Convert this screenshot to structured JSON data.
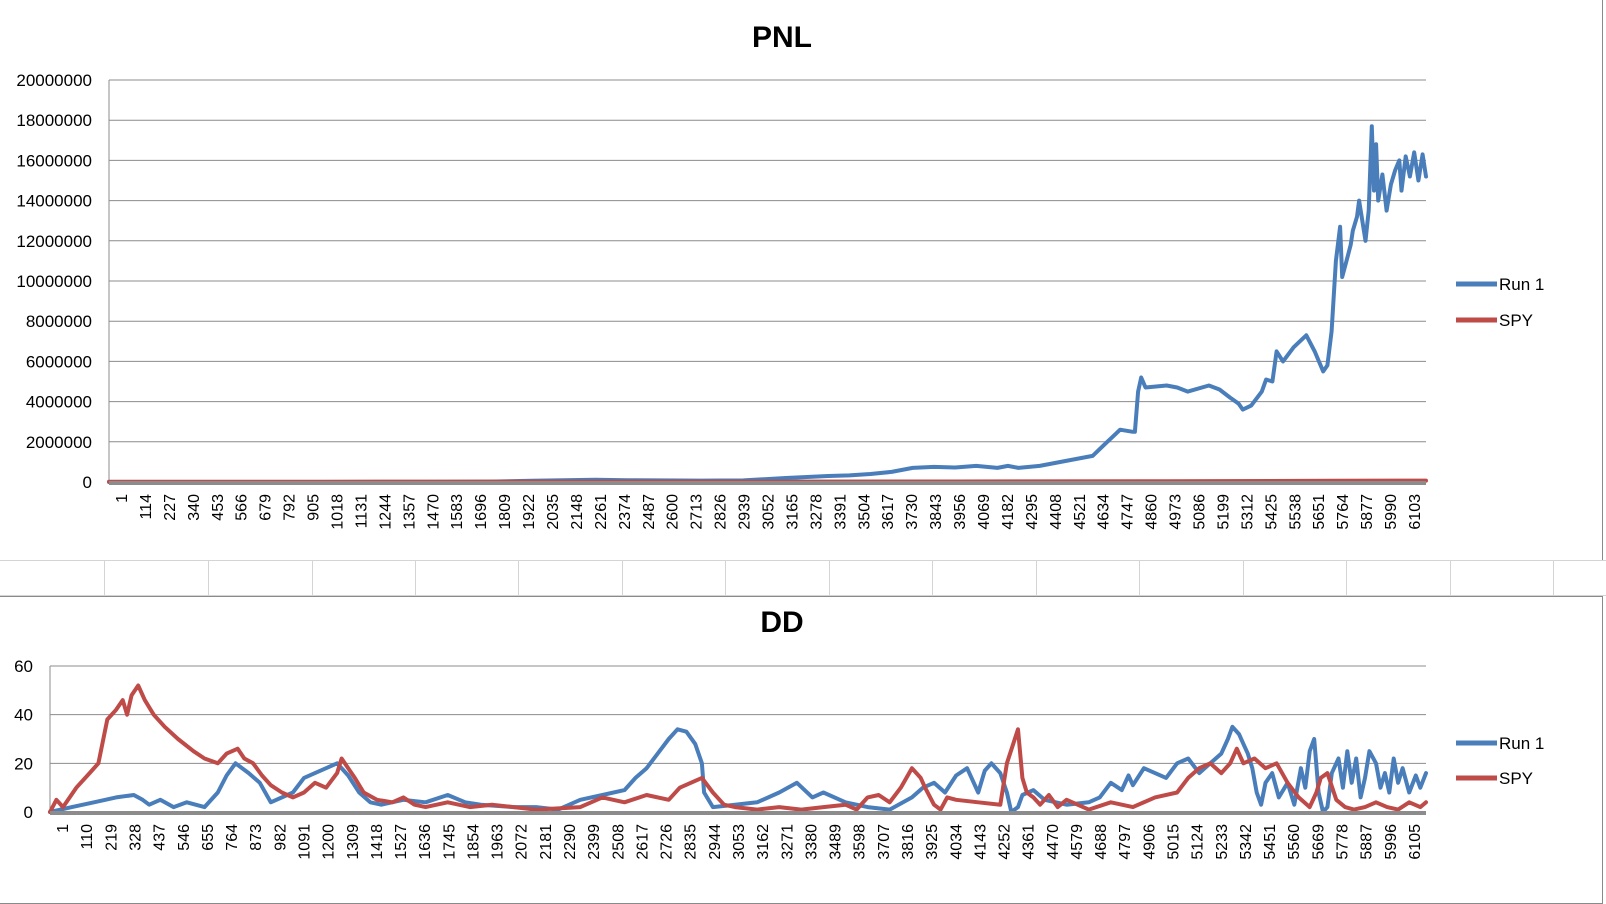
{
  "charts": {
    "pnl": {
      "title": "PNL",
      "ymin": 0,
      "ymax": 20000000,
      "ystep": 2000000,
      "xmax": 6226,
      "ytick_labels": [
        "0",
        "2000000",
        "4000000",
        "6000000",
        "8000000",
        "10000000",
        "12000000",
        "14000000",
        "16000000",
        "18000000",
        "20000000"
      ],
      "xtick_labels": [
        "1",
        "114",
        "227",
        "340",
        "453",
        "566",
        "679",
        "792",
        "905",
        "1018",
        "1131",
        "1244",
        "1357",
        "1470",
        "1583",
        "1696",
        "1809",
        "1922",
        "2035",
        "2148",
        "2261",
        "2374",
        "2487",
        "2600",
        "2713",
        "2826",
        "2939",
        "3052",
        "3165",
        "3278",
        "3391",
        "3504",
        "3617",
        "3730",
        "3843",
        "3956",
        "4069",
        "4182",
        "4295",
        "4408",
        "4521",
        "4634",
        "4747",
        "4860",
        "4973",
        "5086",
        "5199",
        "5312",
        "5425",
        "5538",
        "5651",
        "5764",
        "5877",
        "5990",
        "6103"
      ],
      "legend": [
        {
          "name": "Run 1",
          "color": "#4a7ebb"
        },
        {
          "name": "SPY",
          "color": "#be4b48"
        }
      ]
    },
    "dd": {
      "title": "DD",
      "ymin": 0,
      "ymax": 60,
      "ystep": 20,
      "xmax": 6226,
      "ytick_labels": [
        "0",
        "20",
        "40",
        "60"
      ],
      "xtick_labels": [
        "1",
        "110",
        "219",
        "328",
        "437",
        "546",
        "655",
        "764",
        "873",
        "982",
        "1091",
        "1200",
        "1309",
        "1418",
        "1527",
        "1636",
        "1745",
        "1854",
        "1963",
        "2072",
        "2181",
        "2290",
        "2399",
        "2508",
        "2617",
        "2726",
        "2835",
        "2944",
        "3053",
        "3162",
        "3271",
        "3380",
        "3489",
        "3598",
        "3707",
        "3816",
        "3925",
        "4034",
        "4143",
        "4252",
        "4361",
        "4470",
        "4579",
        "4688",
        "4797",
        "4906",
        "5015",
        "5124",
        "5233",
        "5342",
        "5451",
        "5560",
        "5669",
        "5778",
        "5887",
        "5996",
        "6105"
      ],
      "legend": [
        {
          "name": "Run 1",
          "color": "#4a7ebb"
        },
        {
          "name": "SPY",
          "color": "#be4b48"
        }
      ]
    }
  },
  "chart_data": [
    {
      "type": "line",
      "title": "PNL",
      "xlabel": "",
      "ylabel": "",
      "xlim": [
        1,
        6226
      ],
      "ylim": [
        0,
        20000000
      ],
      "grid": true,
      "legend_position": "right",
      "series": [
        {
          "name": "Run 1",
          "color": "#4a7ebb",
          "x": [
            1,
            500,
            1000,
            1500,
            1800,
            2000,
            2150,
            2300,
            2450,
            2600,
            2800,
            3000,
            3200,
            3400,
            3500,
            3600,
            3700,
            3800,
            3900,
            4000,
            4100,
            4200,
            4250,
            4300,
            4400,
            4500,
            4600,
            4650,
            4700,
            4760,
            4780,
            4840,
            4850,
            4865,
            4880,
            4900,
            5000,
            5050,
            5100,
            5200,
            5250,
            5300,
            5340,
            5360,
            5400,
            5450,
            5470,
            5500,
            5520,
            5550,
            5600,
            5630,
            5660,
            5700,
            5720,
            5740,
            5760,
            5780,
            5800,
            5820,
            5830,
            5850,
            5860,
            5870,
            5880,
            5900,
            5910,
            5940,
            5955,
            5970,
            5980,
            5990,
            6000,
            6020,
            6040,
            6060,
            6080,
            6100,
            6110,
            6130,
            6150,
            6170,
            6190,
            6210,
            6226
          ],
          "y": [
            0,
            0,
            0,
            0,
            20000,
            60000,
            90000,
            110000,
            90000,
            80000,
            70000,
            80000,
            200000,
            300000,
            330000,
            400000,
            500000,
            700000,
            750000,
            720000,
            800000,
            700000,
            800000,
            700000,
            800000,
            1000000,
            1200000,
            1300000,
            1800000,
            2400000,
            2600000,
            2500000,
            2500000,
            4500000,
            5200000,
            4700000,
            4800000,
            4700000,
            4500000,
            4800000,
            4600000,
            4200000,
            3900000,
            3600000,
            3800000,
            4500000,
            5100000,
            5000000,
            6500000,
            6000000,
            6700000,
            7000000,
            7300000,
            6500000,
            6000000,
            5500000,
            5800000,
            7500000,
            11000000,
            12700000,
            10200000,
            11000000,
            11400000,
            11800000,
            12500000,
            13200000,
            14000000,
            12000000,
            13500000,
            17700000,
            14500000,
            16800000,
            14000000,
            15300000,
            13500000,
            14800000,
            15500000,
            16000000,
            14500000,
            16200000,
            15200000,
            16400000,
            15000000,
            16300000,
            15200000
          ]
        },
        {
          "name": "SPY",
          "color": "#be4b48",
          "x": [
            1,
            1000,
            2000,
            3000,
            4000,
            5000,
            5800,
            6226
          ],
          "y": [
            15000,
            15000,
            18000,
            20000,
            25000,
            40000,
            60000,
            70000
          ]
        }
      ]
    },
    {
      "type": "line",
      "title": "DD",
      "xlabel": "",
      "ylabel": "",
      "xlim": [
        1,
        6226
      ],
      "ylim": [
        0,
        60
      ],
      "grid": true,
      "legend_position": "right",
      "series": [
        {
          "name": "Run 1",
          "color": "#4a7ebb",
          "x": [
            1,
            100,
            200,
            300,
            380,
            420,
            450,
            500,
            560,
            620,
            700,
            760,
            800,
            840,
            900,
            950,
            1000,
            1100,
            1150,
            1200,
            1250,
            1300,
            1350,
            1400,
            1450,
            1500,
            1600,
            1700,
            1800,
            1880,
            1950,
            2100,
            2200,
            2300,
            2400,
            2500,
            2600,
            2650,
            2700,
            2750,
            2800,
            2840,
            2880,
            2920,
            2950,
            2960,
            3000,
            3100,
            3200,
            3300,
            3380,
            3450,
            3500,
            3600,
            3700,
            3800,
            3900,
            3950,
            4000,
            4050,
            4100,
            4150,
            4200,
            4230,
            4260,
            4300,
            4330,
            4350,
            4380,
            4400,
            4450,
            4500,
            4600,
            4700,
            4750,
            4800,
            4850,
            4880,
            4900,
            4950,
            5000,
            5050,
            5100,
            5150,
            5200,
            5250,
            5300,
            5330,
            5350,
            5380,
            5400,
            5420,
            5440,
            5460,
            5480,
            5500,
            5530,
            5560,
            5600,
            5630,
            5660,
            5680,
            5700,
            5720,
            5740,
            5760,
            5780,
            5800,
            5830,
            5850,
            5870,
            5890,
            5910,
            5930,
            5950,
            5970,
            6000,
            6020,
            6040,
            6060,
            6080,
            6100,
            6120,
            6150,
            6180,
            6200,
            6226
          ],
          "y": [
            0,
            2,
            4,
            6,
            7,
            5,
            3,
            5,
            2,
            4,
            2,
            8,
            15,
            20,
            16,
            12,
            4,
            8,
            14,
            16,
            18,
            20,
            15,
            8,
            4,
            3,
            5,
            4,
            7,
            4,
            3,
            2,
            2,
            1,
            5,
            7,
            9,
            14,
            18,
            24,
            30,
            34,
            33,
            28,
            20,
            8,
            2,
            3,
            4,
            8,
            12,
            6,
            8,
            4,
            2,
            1,
            6,
            10,
            12,
            8,
            15,
            18,
            8,
            17,
            20,
            16,
            8,
            0,
            2,
            7,
            9,
            5,
            3,
            4,
            6,
            12,
            9,
            15,
            11,
            18,
            16,
            14,
            20,
            22,
            16,
            20,
            24,
            30,
            35,
            32,
            28,
            24,
            18,
            8,
            3,
            12,
            16,
            6,
            12,
            3,
            18,
            10,
            25,
            30,
            8,
            0,
            2,
            16,
            22,
            10,
            25,
            12,
            22,
            6,
            14,
            25,
            20,
            10,
            16,
            8,
            22,
            12,
            18,
            8,
            15,
            10,
            16
          ]
        },
        {
          "name": "SPY",
          "color": "#be4b48",
          "x": [
            1,
            30,
            60,
            120,
            180,
            220,
            260,
            300,
            330,
            350,
            370,
            400,
            430,
            470,
            520,
            580,
            650,
            700,
            760,
            800,
            850,
            880,
            920,
            960,
            1000,
            1050,
            1100,
            1150,
            1200,
            1250,
            1300,
            1320,
            1350,
            1380,
            1420,
            1480,
            1550,
            1600,
            1650,
            1700,
            1800,
            1900,
            2000,
            2200,
            2400,
            2500,
            2600,
            2700,
            2800,
            2850,
            2900,
            2950,
            3000,
            3050,
            3100,
            3200,
            3300,
            3400,
            3500,
            3600,
            3650,
            3700,
            3750,
            3800,
            3850,
            3900,
            3940,
            3960,
            4000,
            4030,
            4060,
            4100,
            4200,
            4300,
            4330,
            4380,
            4400,
            4420,
            4450,
            4480,
            4520,
            4560,
            4600,
            4700,
            4800,
            4900,
            5000,
            5100,
            5150,
            5200,
            5250,
            5300,
            5340,
            5370,
            5400,
            5450,
            5500,
            5550,
            5600,
            5650,
            5700,
            5730,
            5750,
            5780,
            5820,
            5860,
            5900,
            5950,
            6000,
            6050,
            6100,
            6150,
            6200,
            6226
          ],
          "y": [
            0,
            5,
            2,
            10,
            16,
            20,
            38,
            42,
            46,
            40,
            48,
            52,
            46,
            40,
            35,
            30,
            25,
            22,
            20,
            24,
            26,
            22,
            20,
            15,
            11,
            8,
            6,
            8,
            12,
            10,
            16,
            22,
            18,
            14,
            8,
            5,
            4,
            6,
            3,
            2,
            4,
            2,
            3,
            1,
            2,
            6,
            4,
            7,
            5,
            10,
            12,
            14,
            8,
            3,
            2,
            1,
            2,
            1,
            2,
            3,
            1,
            6,
            7,
            4,
            10,
            18,
            14,
            10,
            3,
            1,
            6,
            5,
            4,
            3,
            20,
            34,
            14,
            8,
            6,
            3,
            7,
            2,
            5,
            1,
            4,
            2,
            6,
            8,
            14,
            18,
            20,
            16,
            20,
            26,
            20,
            22,
            18,
            20,
            12,
            6,
            2,
            8,
            14,
            16,
            5,
            2,
            1,
            2,
            4,
            2,
            1,
            4,
            2,
            4
          ]
        }
      ]
    }
  ]
}
